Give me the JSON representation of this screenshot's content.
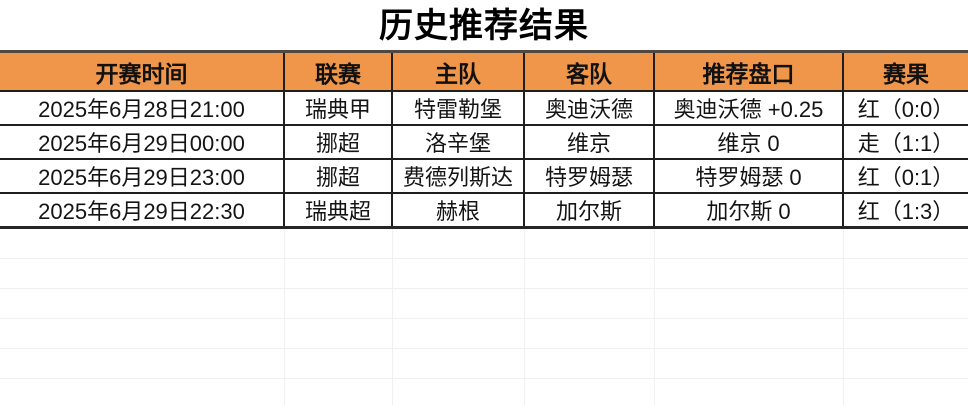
{
  "title": "历史推荐结果",
  "table": {
    "headers": [
      "开赛时间",
      "联赛",
      "主队",
      "客队",
      "推荐盘口",
      "赛果"
    ],
    "rows": [
      {
        "time": "2025年6月28日21:00",
        "league": "瑞典甲",
        "home": "特雷勒堡",
        "away": "奥迪沃德",
        "handicap": "奥迪沃德 +0.25",
        "result": "红（0:0）",
        "result_type": "win"
      },
      {
        "time": "2025年6月29日00:00",
        "league": "挪超",
        "home": "洛辛堡",
        "away": "维京",
        "handicap": "维京 0",
        "result": "走（1:1）",
        "result_type": "push"
      },
      {
        "time": "2025年6月29日23:00",
        "league": "挪超",
        "home": "费德列斯达",
        "away": "特罗姆瑟",
        "handicap": "特罗姆瑟 0",
        "result": "红（0:1）",
        "result_type": "win"
      },
      {
        "time": "2025年6月29日22:30",
        "league": "瑞典超",
        "home": "赫根",
        "away": "加尔斯",
        "handicap": "加尔斯 0",
        "result": "红（1:3）",
        "result_type": "win"
      }
    ],
    "empty_row_count": 6
  },
  "colors": {
    "header_bg": "#F0964A",
    "result_win_red": "#B4281E",
    "result_push_orange": "#E8822D",
    "border_dark": "#1F1F1F",
    "grid_light": "#F2EFF1"
  }
}
